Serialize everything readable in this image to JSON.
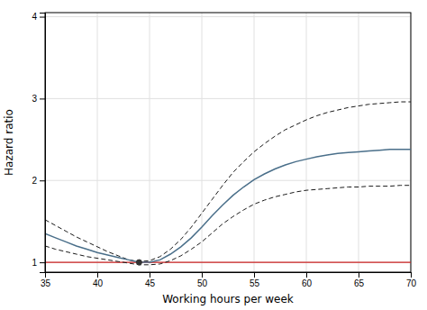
{
  "chart_data": {
    "type": "line",
    "xlabel": "Working hours per week",
    "ylabel": "Hazard ratio",
    "xlim": [
      35,
      70
    ],
    "ylim": [
      0.88,
      4.05
    ],
    "xticks": [
      35,
      40,
      45,
      50,
      55,
      60,
      65,
      70
    ],
    "yticks": [
      1,
      2,
      3,
      4
    ],
    "grid": true,
    "x": [
      35,
      36,
      37,
      38,
      39,
      40,
      41,
      42,
      43,
      44,
      45,
      46,
      47,
      48,
      49,
      50,
      51,
      52,
      53,
      54,
      55,
      56,
      57,
      58,
      59,
      60,
      61,
      62,
      63,
      64,
      65,
      66,
      67,
      68,
      69,
      70
    ],
    "series": [
      {
        "color": "#1a1a1a",
        "line_style": "dashed",
        "values": [
          1.52,
          1.45,
          1.38,
          1.31,
          1.25,
          1.19,
          1.13,
          1.08,
          1.03,
          1.01,
          1.02,
          1.07,
          1.16,
          1.28,
          1.43,
          1.6,
          1.77,
          1.94,
          2.1,
          2.23,
          2.35,
          2.45,
          2.54,
          2.62,
          2.68,
          2.74,
          2.79,
          2.83,
          2.86,
          2.89,
          2.91,
          2.93,
          2.94,
          2.95,
          2.96,
          2.96
        ]
      },
      {
        "color": "#1a1a1a",
        "line_style": "dashed",
        "values": [
          1.2,
          1.16,
          1.13,
          1.1,
          1.07,
          1.05,
          1.03,
          1.01,
          0.99,
          0.97,
          0.97,
          0.98,
          1.02,
          1.08,
          1.16,
          1.25,
          1.36,
          1.47,
          1.56,
          1.64,
          1.71,
          1.76,
          1.8,
          1.83,
          1.86,
          1.88,
          1.89,
          1.9,
          1.91,
          1.92,
          1.92,
          1.93,
          1.93,
          1.93,
          1.94,
          1.94
        ]
      },
      {
        "color": "#4a6f8a",
        "line_style": "solid",
        "values": [
          1.35,
          1.3,
          1.25,
          1.2,
          1.16,
          1.12,
          1.09,
          1.06,
          1.03,
          1.0,
          1.0,
          1.03,
          1.1,
          1.19,
          1.3,
          1.43,
          1.57,
          1.7,
          1.82,
          1.92,
          2.01,
          2.08,
          2.14,
          2.19,
          2.23,
          2.26,
          2.29,
          2.31,
          2.33,
          2.34,
          2.35,
          2.36,
          2.37,
          2.38,
          2.38,
          2.38
        ]
      }
    ],
    "reference_line": {
      "y": 1.0,
      "color": "#cc2222"
    },
    "reference_point": {
      "x": 44.0,
      "y": 1.0,
      "color": "#333333"
    }
  }
}
